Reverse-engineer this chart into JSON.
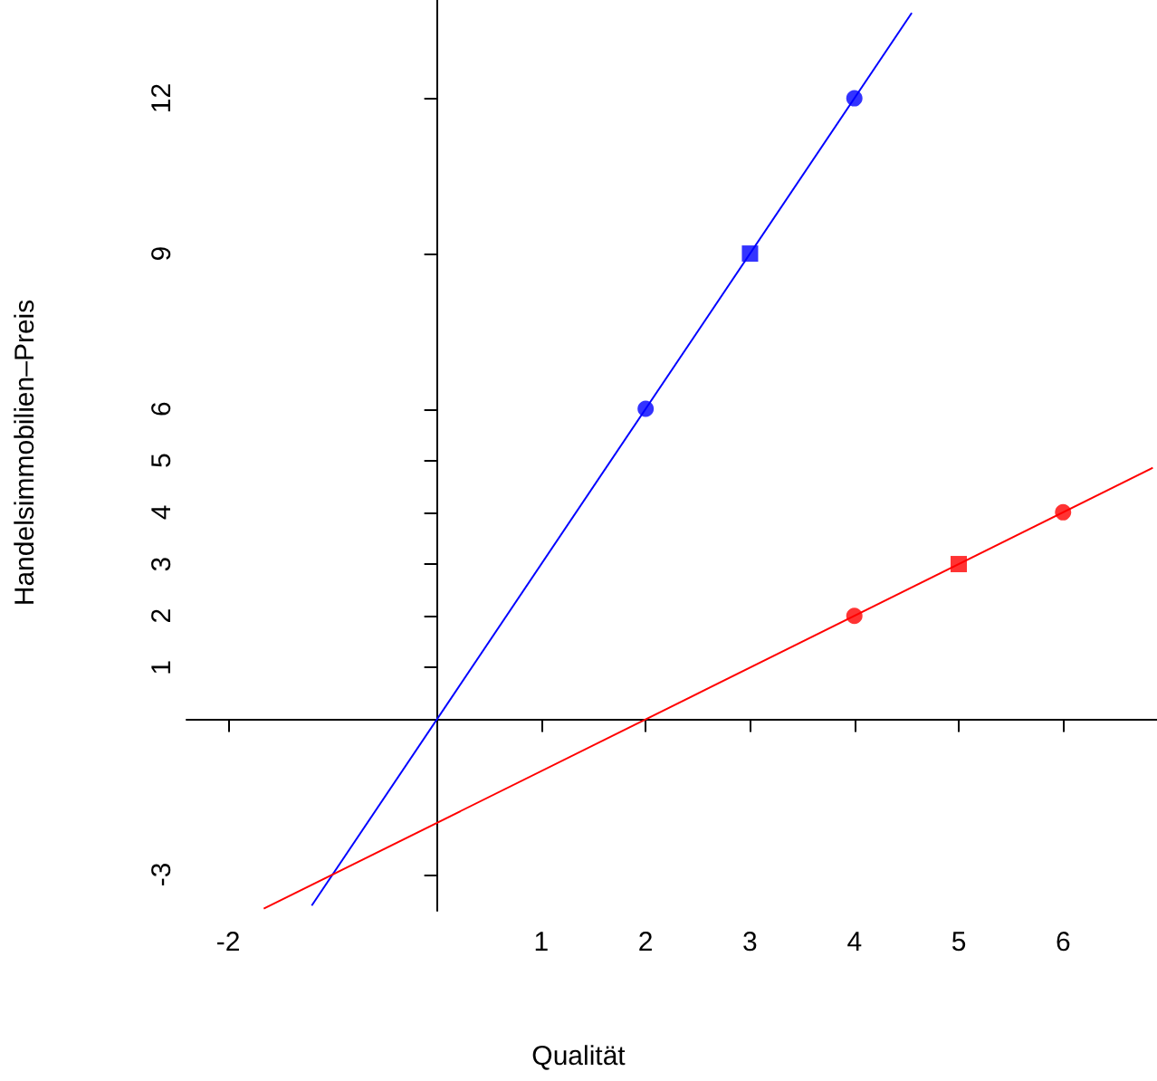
{
  "chart_data": {
    "type": "line",
    "xlabel": "Qualität",
    "ylabel": "Handelsimmobilien–Preis",
    "xlim": [
      -2.4,
      6.9
    ],
    "ylim": [
      -3.7,
      13.9
    ],
    "xticks": [
      -2,
      1,
      2,
      3,
      4,
      5,
      6
    ],
    "yticks": [
      -3,
      1,
      2,
      3,
      4,
      5,
      6,
      9,
      12
    ],
    "grid": false,
    "line_style": "solid",
    "series": [
      {
        "color": "#0000ff",
        "x": [
          -1.2,
          4.55
        ],
        "values": [
          -3.6,
          13.65
        ],
        "marker": "none"
      },
      {
        "color": "#ff0000",
        "x": [
          -1.66,
          6.86
        ],
        "values": [
          -3.66,
          4.86
        ],
        "marker": "none"
      },
      {
        "type": "scatter",
        "color": "#0000ff",
        "x": [
          2,
          4
        ],
        "values": [
          6,
          12
        ],
        "marker": "circle"
      },
      {
        "type": "scatter",
        "color": "#0000ff",
        "x": [
          3
        ],
        "values": [
          9
        ],
        "marker": "square"
      },
      {
        "type": "scatter",
        "color": "#ff0000",
        "x": [
          4,
          6
        ],
        "values": [
          2,
          4
        ],
        "marker": "circle"
      },
      {
        "type": "scatter",
        "color": "#ff0000",
        "x": [
          5
        ],
        "values": [
          3
        ],
        "marker": "square"
      }
    ]
  }
}
